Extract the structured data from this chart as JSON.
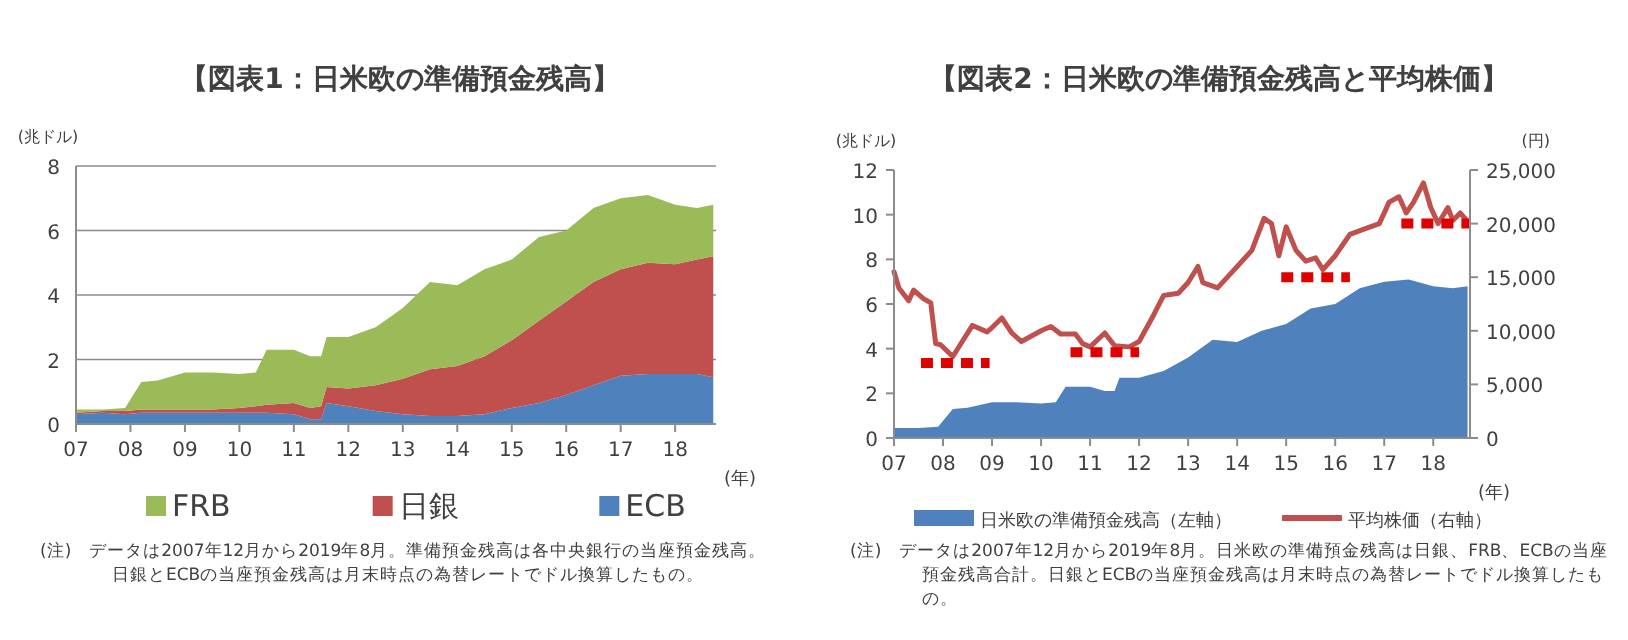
{
  "chart_data": [
    {
      "type": "area",
      "stacked": true,
      "title": "【図表1：日米欧の準備預金残高】",
      "ylabel": "(兆ドル)",
      "xlabel": "(年)",
      "x": [
        2007.0,
        2007.5,
        2007.9,
        2008.2,
        2008.5,
        2009.0,
        2009.5,
        2010.0,
        2010.3,
        2010.5,
        2011.0,
        2011.3,
        2011.5,
        2011.6,
        2012.0,
        2012.5,
        2013.0,
        2013.5,
        2014.0,
        2014.5,
        2015.0,
        2015.5,
        2016.0,
        2016.5,
        2017.0,
        2017.5,
        2018.0,
        2018.4,
        2018.7
      ],
      "series": [
        {
          "name": "ECB",
          "color": "#4f81bd",
          "values": [
            0.3,
            0.35,
            0.3,
            0.35,
            0.35,
            0.35,
            0.35,
            0.35,
            0.35,
            0.35,
            0.3,
            0.15,
            0.15,
            0.65,
            0.55,
            0.4,
            0.3,
            0.25,
            0.25,
            0.3,
            0.5,
            0.65,
            0.9,
            1.2,
            1.5,
            1.55,
            1.55,
            1.55,
            1.45
          ]
        },
        {
          "name": "日銀",
          "color": "#c0504d",
          "values": [
            0.05,
            0.05,
            0.1,
            0.1,
            0.1,
            0.1,
            0.1,
            0.15,
            0.2,
            0.25,
            0.35,
            0.35,
            0.4,
            0.5,
            0.55,
            0.8,
            1.1,
            1.45,
            1.55,
            1.8,
            2.1,
            2.55,
            2.9,
            3.2,
            3.3,
            3.45,
            3.4,
            3.55,
            3.75
          ]
        },
        {
          "name": "FRB",
          "color": "#9bbb59",
          "values": [
            0.1,
            0.05,
            0.1,
            0.85,
            0.9,
            1.15,
            1.15,
            1.05,
            1.05,
            1.7,
            1.65,
            1.6,
            1.55,
            1.55,
            1.6,
            1.8,
            2.2,
            2.7,
            2.5,
            2.7,
            2.5,
            2.6,
            2.2,
            2.3,
            2.2,
            2.1,
            1.85,
            1.6,
            1.6
          ]
        }
      ],
      "xlim": [
        2007,
        2018.75
      ],
      "xticks": [
        {
          "value": 2007,
          "label": "07"
        },
        {
          "value": 2008,
          "label": "08"
        },
        {
          "value": 2009,
          "label": "09"
        },
        {
          "value": 2010,
          "label": "10"
        },
        {
          "value": 2011,
          "label": "11"
        },
        {
          "value": 2012,
          "label": "12"
        },
        {
          "value": 2013,
          "label": "13"
        },
        {
          "value": 2014,
          "label": "14"
        },
        {
          "value": 2015,
          "label": "15"
        },
        {
          "value": 2016,
          "label": "16"
        },
        {
          "value": 2017,
          "label": "17"
        },
        {
          "value": 2018,
          "label": "18"
        }
      ],
      "ylim": [
        0,
        8
      ],
      "yticks": [
        0,
        2,
        4,
        6,
        8
      ],
      "grid": "y",
      "legend": "bottom",
      "annotations": [
        "(注)　データは2007年12月から2019年8月。準備預金残高は各中央銀行の当座預金残高。日銀とECBの当座預金残高は月末時点の為替レートでドル換算したもの。"
      ]
    },
    {
      "type": "area",
      "title": "【図表2：日米欧の準備預金残高と平均株価】",
      "ylabel": "(兆ドル)",
      "y2label": "(円)",
      "xlabel": "(年)",
      "x": [
        2007.0,
        2007.5,
        2007.9,
        2008.2,
        2008.5,
        2009.0,
        2009.5,
        2010.0,
        2010.3,
        2010.5,
        2011.0,
        2011.3,
        2011.5,
        2011.6,
        2012.0,
        2012.5,
        2013.0,
        2013.5,
        2014.0,
        2014.5,
        2015.0,
        2015.5,
        2016.0,
        2016.5,
        2017.0,
        2017.5,
        2018.0,
        2018.4,
        2018.7
      ],
      "series": [
        {
          "name": "日米欧の準備預金残高（左軸）",
          "color": "#4f81bd",
          "values": [
            0.45,
            0.45,
            0.5,
            1.3,
            1.35,
            1.6,
            1.6,
            1.55,
            1.6,
            2.3,
            2.3,
            2.1,
            2.1,
            2.7,
            2.7,
            3.0,
            3.6,
            4.4,
            4.3,
            4.8,
            5.1,
            5.8,
            6.0,
            6.7,
            7.0,
            7.1,
            6.8,
            6.7,
            6.8
          ]
        },
        {
          "name": "平均株価（右軸）",
          "type": "line",
          "axis": "y2",
          "color": "#c0504d",
          "line_style": "solid",
          "x": [
            2007.0,
            2007.1,
            2007.3,
            2007.4,
            2007.6,
            2007.75,
            2007.85,
            2007.95,
            2008.2,
            2008.6,
            2008.9,
            2009.0,
            2009.2,
            2009.4,
            2009.6,
            2010.0,
            2010.2,
            2010.4,
            2010.7,
            2010.85,
            2011.0,
            2011.3,
            2011.5,
            2011.8,
            2012.0,
            2012.3,
            2012.5,
            2012.8,
            2013.0,
            2013.2,
            2013.3,
            2013.6,
            2013.9,
            2014.3,
            2014.55,
            2014.7,
            2014.85,
            2015.0,
            2015.2,
            2015.4,
            2015.6,
            2015.75,
            2016.0,
            2016.3,
            2016.6,
            2016.9,
            2017.1,
            2017.3,
            2017.45,
            2017.6,
            2017.8,
            2017.95,
            2018.1,
            2018.3,
            2018.4,
            2018.55,
            2018.7
          ],
          "values": [
            15500,
            14000,
            12800,
            13800,
            13000,
            12600,
            8800,
            8700,
            7600,
            10500,
            9900,
            10300,
            11200,
            9800,
            9000,
            10000,
            10400,
            9700,
            9700,
            8800,
            8500,
            9800,
            8600,
            8500,
            9000,
            11500,
            13300,
            13500,
            14500,
            16000,
            14500,
            14000,
            15500,
            17500,
            20500,
            20000,
            17000,
            19700,
            17500,
            16500,
            16800,
            15700,
            17000,
            19000,
            19500,
            20000,
            22000,
            22500,
            21000,
            22000,
            23800,
            21500,
            20000,
            21500,
            20300,
            21000,
            20200
          ]
        },
        {
          "type": "line",
          "axis": "y2",
          "color": "#e00000",
          "line_style": "dashed",
          "x": [
            2007.55,
            2008.95
          ],
          "values": [
            7000,
            7000
          ]
        },
        {
          "type": "line",
          "axis": "y2",
          "color": "#e00000",
          "line_style": "dashed",
          "x": [
            2010.6,
            2012.0
          ],
          "values": [
            8000,
            8000
          ]
        },
        {
          "type": "line",
          "axis": "y2",
          "color": "#e00000",
          "line_style": "dashed",
          "x": [
            2014.9,
            2016.3
          ],
          "values": [
            15000,
            15000
          ]
        },
        {
          "type": "line",
          "axis": "y2",
          "color": "#e00000",
          "line_style": "dashed",
          "x": [
            2017.35,
            2018.75
          ],
          "values": [
            20000,
            20000
          ]
        }
      ],
      "xlim": [
        2007,
        2018.75
      ],
      "xticks": [
        {
          "value": 2007,
          "label": "07"
        },
        {
          "value": 2008,
          "label": "08"
        },
        {
          "value": 2009,
          "label": "09"
        },
        {
          "value": 2010,
          "label": "10"
        },
        {
          "value": 2011,
          "label": "11"
        },
        {
          "value": 2012,
          "label": "12"
        },
        {
          "value": 2013,
          "label": "13"
        },
        {
          "value": 2014,
          "label": "14"
        },
        {
          "value": 2015,
          "label": "15"
        },
        {
          "value": 2016,
          "label": "16"
        },
        {
          "value": 2017,
          "label": "17"
        },
        {
          "value": 2018,
          "label": "18"
        }
      ],
      "ylim": [
        0,
        12
      ],
      "yticks": [
        0,
        2,
        4,
        6,
        8,
        10,
        12
      ],
      "y2lim": [
        0,
        25000
      ],
      "y2ticks": [
        0,
        {
          "value": 5000,
          "label": "5,000"
        },
        {
          "value": 10000,
          "label": "10,000"
        },
        {
          "value": 15000,
          "label": "15,000"
        },
        {
          "value": 20000,
          "label": "20,000"
        },
        {
          "value": 25000,
          "label": "25,000"
        }
      ],
      "legend": "bottom",
      "annotations": [
        "(注)　データは2007年12月から2019年8月。日米欧の準備預金残高は日銀、FRB、ECBの当座預金残高合計。日銀とECBの当座預金残高は月末時点の為替レートでドル換算したもの。"
      ]
    }
  ]
}
